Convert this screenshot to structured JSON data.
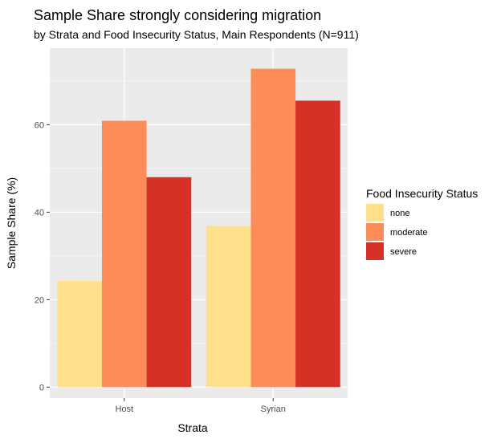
{
  "chart_data": {
    "type": "bar",
    "title": "Sample Share strongly considering migration",
    "subtitle": "by Strata and Food Insecurity Status, Main Respondents (N=911)",
    "xlabel": "Strata",
    "ylabel": "Sample Share (%)",
    "categories": [
      "Host",
      "Syrian"
    ],
    "series": [
      {
        "name": "none",
        "values": [
          24.3,
          36.9
        ]
      },
      {
        "name": "moderate",
        "values": [
          60.9,
          72.8
        ]
      },
      {
        "name": "severe",
        "values": [
          48.0,
          65.5
        ]
      }
    ],
    "ylim": [
      -2.5,
      77.5
    ],
    "yticks": [
      0,
      20,
      40,
      60
    ],
    "ytick_labels": [
      "0",
      "20",
      "40",
      "60"
    ],
    "grid": true,
    "legend": {
      "title": "Food Insecurity Status",
      "placement": "right",
      "entries": [
        "none",
        "moderate",
        "severe"
      ]
    },
    "colors": {
      "none": "#FEE08B",
      "moderate": "#FC8D59",
      "severe": "#D73027",
      "panel_background": "#EBEBEB",
      "grid": "#FFFFFF"
    }
  }
}
